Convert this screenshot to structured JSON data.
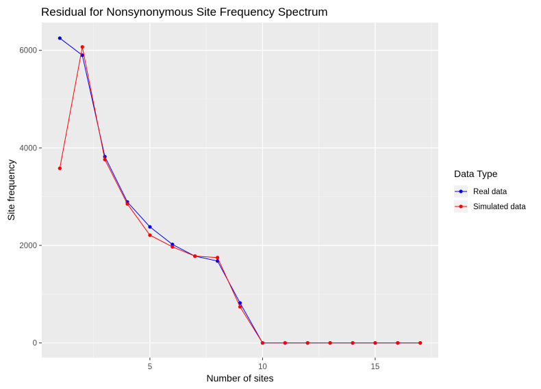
{
  "chart_data": {
    "type": "line",
    "title": "Residual for Nonsynonymous Site Frequency Spectrum",
    "xlabel": "Number of sites",
    "ylabel": "Site frequency",
    "xlim": [
      0.2,
      17.8
    ],
    "ylim": [
      -300,
      6570
    ],
    "x_ticks": [
      5,
      10,
      15
    ],
    "y_ticks": [
      0,
      2000,
      4000,
      6000
    ],
    "x_tick_labels": [
      "5",
      "10",
      "15"
    ],
    "y_tick_labels": [
      "0",
      "2000",
      "4000",
      "6000"
    ],
    "grid": true,
    "legend": {
      "title": "Data Type",
      "position": "right"
    },
    "x": [
      1,
      2,
      3,
      4,
      5,
      6,
      7,
      8,
      9,
      10,
      11,
      12,
      13,
      14,
      15,
      16,
      17
    ],
    "series": [
      {
        "name": "Real data",
        "color": "#0000ff",
        "values": [
          6250,
          5900,
          3820,
          2890,
          2380,
          2020,
          1780,
          1680,
          820,
          0,
          0,
          0,
          0,
          0,
          0,
          0,
          0
        ]
      },
      {
        "name": "Simulated data",
        "color": "#ff0000",
        "values": [
          3580,
          6070,
          3760,
          2850,
          2210,
          1970,
          1780,
          1750,
          740,
          0,
          0,
          0,
          0,
          0,
          0,
          0,
          0
        ]
      }
    ]
  }
}
